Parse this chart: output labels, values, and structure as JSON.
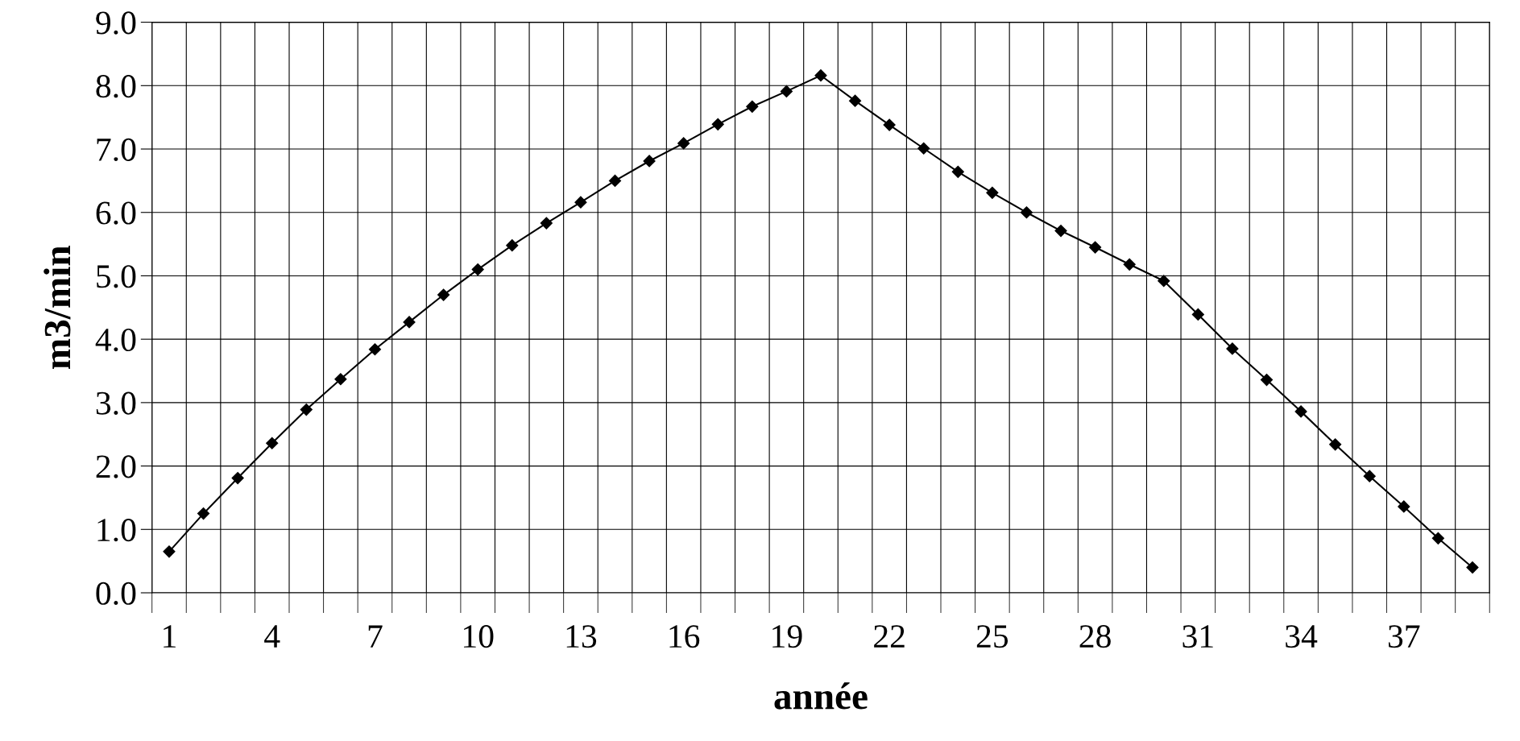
{
  "chart_data": {
    "type": "line",
    "xlabel": "année",
    "ylabel": "m3/min",
    "categories": [
      "1",
      null,
      null,
      "4",
      null,
      null,
      "7",
      null,
      null,
      "10",
      null,
      null,
      "13",
      null,
      null,
      "16",
      null,
      null,
      "19",
      null,
      null,
      "22",
      null,
      null,
      "25",
      null,
      null,
      "28",
      null,
      null,
      "31",
      null,
      null,
      "34",
      null,
      null,
      "37",
      null,
      null
    ],
    "series": [
      {
        "color": "#000000",
        "values": [
          0.65,
          1.25,
          1.81,
          2.36,
          2.89,
          3.37,
          3.84,
          4.27,
          4.7,
          5.1,
          5.48,
          5.83,
          6.16,
          6.5,
          6.81,
          7.09,
          7.39,
          7.67,
          7.91,
          8.16,
          7.76,
          7.38,
          7.01,
          6.64,
          6.31,
          6.0,
          5.71,
          5.45,
          5.18,
          4.92,
          4.39,
          3.85,
          3.36,
          2.86,
          2.34,
          1.84,
          1.36,
          0.86,
          0.4
        ]
      }
    ],
    "ylim": [
      0,
      9
    ],
    "yticks": [
      {
        "value": 0,
        "label": "0.0"
      },
      {
        "value": 1,
        "label": "1.0"
      },
      {
        "value": 2,
        "label": "2.0"
      },
      {
        "value": 3,
        "label": "3.0"
      },
      {
        "value": 4,
        "label": "4.0"
      },
      {
        "value": 5,
        "label": "5.0"
      },
      {
        "value": 6,
        "label": "6.0"
      },
      {
        "value": 7,
        "label": "7.0"
      },
      {
        "value": 8,
        "label": "8.0"
      },
      {
        "value": 9,
        "label": "9.0"
      }
    ],
    "grid": true,
    "legend": false,
    "marker": "diamond",
    "line_style": "solid"
  }
}
